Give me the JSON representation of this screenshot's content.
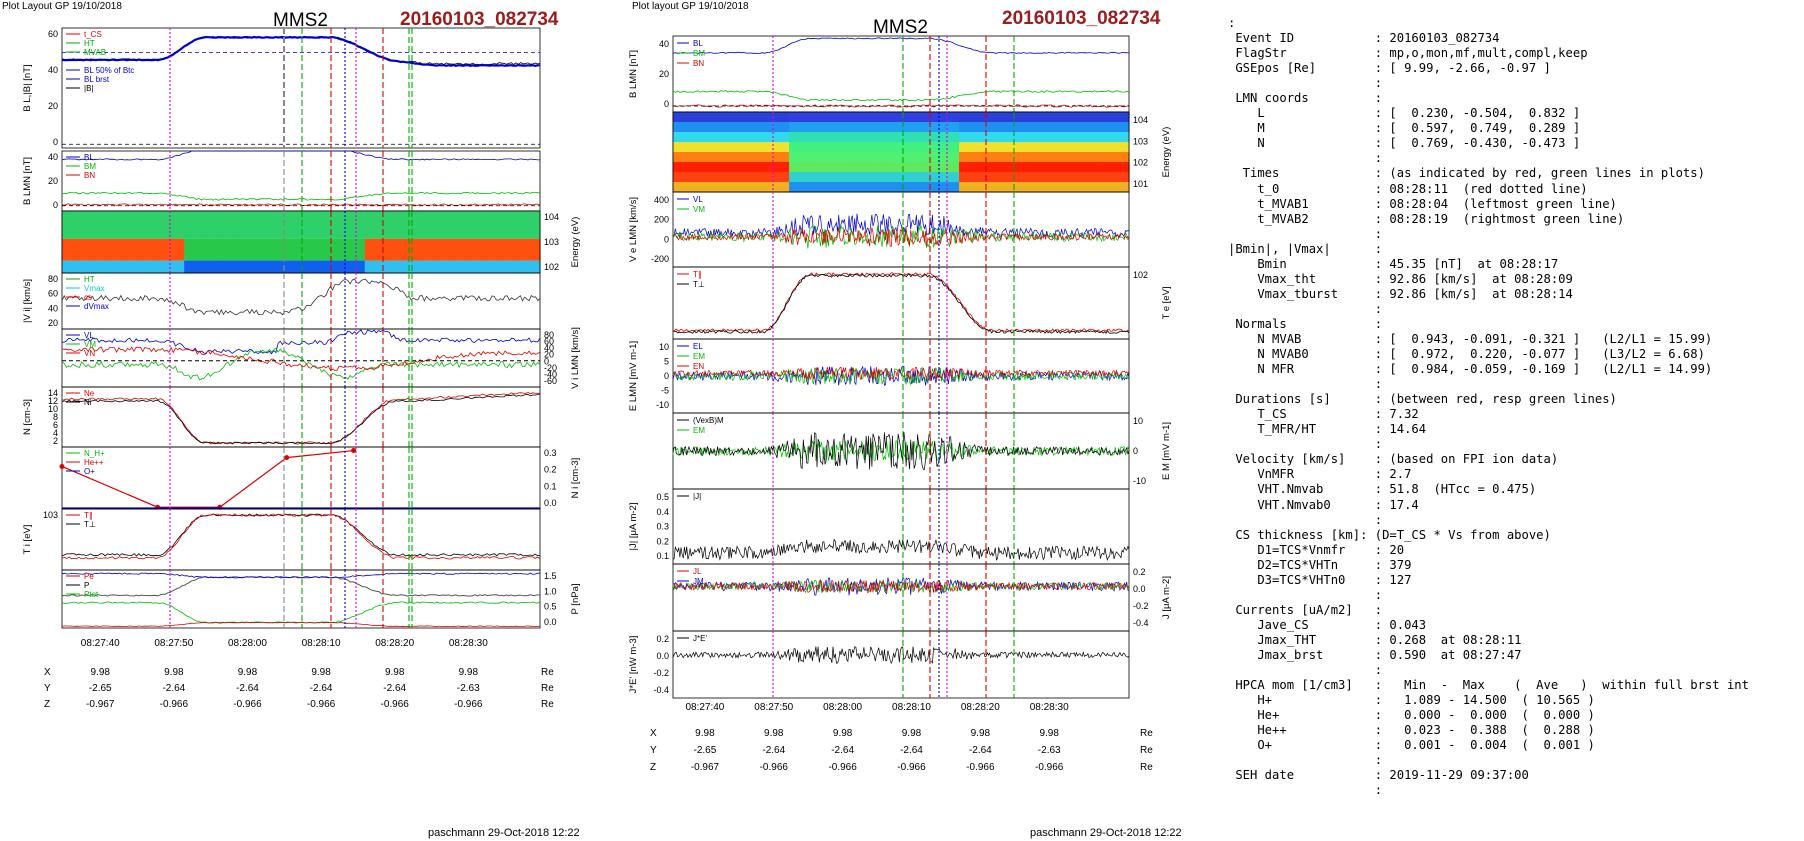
{
  "left": {
    "header": "Plot Layout GP 19/10/2018",
    "title": "MMS2",
    "event": "20160103_082734",
    "footer": "paschmann 29-Oct-2018 12:22",
    "time_labels": [
      "08:27:40",
      "08:27:50",
      "08:28:00",
      "08:28:10",
      "08:28:20",
      "08:28:30"
    ],
    "ephem": [
      {
        "label": "X",
        "values": [
          "9.98",
          "9.98",
          "9.98",
          "9.98",
          "9.98",
          "9.98"
        ],
        "unit": "Re"
      },
      {
        "label": "Y",
        "values": [
          "-2.65",
          "-2.64",
          "-2.64",
          "-2.64",
          "-2.64",
          "-2.63"
        ],
        "unit": "Re"
      },
      {
        "label": "Z",
        "values": [
          "-0.967",
          "-0.966",
          "-0.966",
          "-0.966",
          "-0.966",
          "-0.966"
        ],
        "unit": "Re"
      }
    ],
    "panels": [
      {
        "id": "p1",
        "ylabel": "B_L,|B| [nT]",
        "ticks": [
          "60",
          "40",
          "20",
          "0"
        ],
        "legend": [
          "t_CS",
          "HT",
          "MVAB",
          "",
          "BL 50% of Btc",
          "BL brst",
          "|B|"
        ],
        "legend_colors": [
          "#d00",
          "#0a0",
          "#0a0",
          "#888",
          "#00c",
          "#00c",
          "#000"
        ]
      },
      {
        "id": "p2",
        "ylabel": "B_LMN [nT]",
        "ticks": [
          "40",
          "20",
          "0"
        ],
        "legend": [
          "BL",
          "BM",
          "BN"
        ],
        "legend_colors": [
          "#00c",
          "#0b0",
          "#d00"
        ]
      },
      {
        "id": "p3",
        "ylabel": "Energy (eV)",
        "ticks": [
          "10^4",
          "10^3",
          "10^2"
        ]
      },
      {
        "id": "p4",
        "ylabel": "|V_i| [km/s]",
        "ticks": [
          "80",
          "60",
          "40",
          "20"
        ],
        "legend": [
          "HT",
          "Vmax",
          "cs",
          "dVmax"
        ],
        "legend_colors": [
          "#0a0",
          "#0cc",
          "#d00",
          "#00c"
        ]
      },
      {
        "id": "p5",
        "ylabel": "V_i LMN [km/s]",
        "ticks": [
          "80",
          "60",
          "40",
          "20",
          "0",
          "-20",
          "-40",
          "-60"
        ],
        "legend": [
          "VL",
          "VM",
          "VN"
        ],
        "legend_colors": [
          "#00c",
          "#0b0",
          "#d00"
        ]
      },
      {
        "id": "p6",
        "ylabel": "N [cm^-3]",
        "ticks": [
          "14",
          "12",
          "10",
          "8",
          "6",
          "4",
          "2"
        ],
        "legend": [
          "Ne",
          "Ni"
        ],
        "legend_colors": [
          "#d00",
          "#000"
        ]
      },
      {
        "id": "p7",
        "ylabel": "N_i [cm^-3]",
        "ticks": [
          "0.3",
          "0.2",
          "0.1",
          "0.0"
        ],
        "legend": [
          "N_H+",
          "He++",
          "O+"
        ],
        "legend_colors": [
          "#0b0",
          "#d00",
          "#00c"
        ]
      },
      {
        "id": "p8",
        "ylabel": "T_i [eV]",
        "ticks": [
          "10^3"
        ],
        "legend": [
          "T∥",
          "T⊥"
        ],
        "legend_colors": [
          "#d00",
          "#000"
        ]
      },
      {
        "id": "p9",
        "ylabel": "P [nPa]",
        "ticks": [
          "1.5",
          "1.0",
          "0.5",
          "0.0"
        ],
        "legend": [
          "Pe",
          "P",
          "Ptot"
        ],
        "legend_colors": [
          "#d00",
          "#000",
          "#0b0"
        ]
      }
    ]
  },
  "center": {
    "header": "Plot layout GP 19/10/2018",
    "title": "MMS2",
    "event": "20160103_082734",
    "footer": "paschmann 29-Oct-2018 12:22",
    "time_labels": [
      "08:27:40",
      "08:27:50",
      "08:28:00",
      "08:28:10",
      "08:28:20",
      "08:28:30"
    ],
    "ephem": [
      {
        "label": "X",
        "values": [
          "9.98",
          "9.98",
          "9.98",
          "9.98",
          "9.98",
          "9.98"
        ],
        "unit": "Re"
      },
      {
        "label": "Y",
        "values": [
          "-2.65",
          "-2.64",
          "-2.64",
          "-2.64",
          "-2.64",
          "-2.63"
        ],
        "unit": "Re"
      },
      {
        "label": "Z",
        "values": [
          "-0.967",
          "-0.966",
          "-0.966",
          "-0.966",
          "-0.966",
          "-0.966"
        ],
        "unit": "Re"
      }
    ],
    "panels": [
      {
        "id": "c1",
        "ylabel": "B_LMN [nT]",
        "ticks": [
          "40",
          "20",
          "0"
        ],
        "legend": [
          "BL",
          "BM",
          "BN"
        ]
      },
      {
        "id": "c2",
        "ylabel": "Energy (eV)",
        "ticks": [
          "10^4",
          "10^3",
          "10^2",
          "10^1"
        ]
      },
      {
        "id": "c3",
        "ylabel": "V_e LMN [km/s]",
        "ticks": [
          "400",
          "200",
          "0",
          "-200"
        ],
        "legend": [
          "VL",
          "VM"
        ]
      },
      {
        "id": "c4",
        "ylabel": "T_e [eV]",
        "ticks": [
          "10^2"
        ],
        "legend": [
          "T∥",
          "T⊥"
        ]
      },
      {
        "id": "c5",
        "ylabel": "E_LMN [mV m^-1]",
        "ticks": [
          "10",
          "5",
          "0",
          "-5",
          "-10"
        ],
        "legend": [
          "EL",
          "EM",
          "EN"
        ]
      },
      {
        "id": "c6",
        "ylabel": "E_M [mV m^-1]",
        "ticks": [
          "10",
          "0",
          "-10"
        ],
        "legend": [
          "(VexB)M",
          "EM"
        ]
      },
      {
        "id": "c7",
        "ylabel": "|J| [μA m^-2]",
        "ticks": [
          "0.5",
          "0.4",
          "0.3",
          "0.2",
          "0.1"
        ],
        "legend": [
          "|J|"
        ]
      },
      {
        "id": "c8",
        "ylabel": "J [μA m^-2]",
        "ticks": [
          "0.2",
          "0.0",
          "-0.2",
          "-0.4"
        ],
        "legend": [
          "JL",
          "JM"
        ]
      },
      {
        "id": "c9",
        "ylabel": "J*E' [nW m^-3]",
        "ticks": [
          "0.2",
          "0.0",
          "-0.2",
          "-0.4"
        ],
        "legend": [
          "J*E'"
        ]
      }
    ]
  },
  "info_lines": [
    ":",
    " Event ID           : 20160103_082734",
    " FlagStr            : mp,o,mon,mf,mult,compl,keep",
    " GSEpos [Re]        : [ 9.99, -2.66, -0.97 ]",
    "                    :",
    " LMN coords         :",
    "    L               : [  0.230, -0.504,  0.832 ]",
    "    M               : [  0.597,  0.749,  0.289 ]",
    "    N               : [  0.769, -0.430, -0.473 ]",
    "                    :",
    "  Times             : (as indicated by red, green lines in plots)",
    "    t_0             : 08:28:11  (red dotted line)",
    "    t_MVAB1         : 08:28:04  (leftmost green line)",
    "    t_MVAB2         : 08:28:19  (rightmost green line)",
    "                    :",
    "|Bmin|, |Vmax|      :",
    "    Bmin            : 45.35 [nT]  at 08:28:17",
    "    Vmax_tht        : 92.86 [km/s]  at 08:28:09",
    "    Vmax_tburst     : 92.86 [km/s]  at 08:28:14",
    "                    :",
    " Normals            :",
    "    N MVAB          : [  0.943, -0.091, -0.321 ]   (L2/L1 = 15.99)",
    "    N MVAB0         : [  0.972,  0.220, -0.077 ]   (L3/L2 = 6.68)",
    "    N MFR           : [  0.984, -0.059, -0.169 ]   (L2/L1 = 14.99)",
    "                    :",
    " Durations [s]      : (between red, resp green lines)",
    "    T_CS            : 7.32",
    "    T_MFR/HT        : 14.64",
    "                    :",
    " Velocity [km/s]    : (based on FPI ion data)",
    "    VnMFR           : 2.7",
    "    VHT.Nmvab       : 51.8  (HTcc = 0.475)",
    "    VHT.Nmvab0      : 17.4",
    "                    :",
    " CS thickness [km]: (D=T_CS * Vs from above)",
    "    D1=TCS*Vnmfr    : 20",
    "    D2=TCS*VHTn     : 379",
    "    D3=TCS*VHTn0    : 127",
    "                    :",
    " Currents [uA/m2]   :",
    "    Jave_CS         : 0.043",
    "    Jmax_THT        : 0.268  at 08:28:11",
    "    Jmax_brst       : 0.590  at 08:27:47",
    "                    :",
    " HPCA mom [1/cm3]   :   Min  -  Max    (  Ave   )  within full brst int",
    "    H+              :   1.089 - 14.500  ( 10.565 )",
    "    He+             :   0.000 -  0.000  (  0.000 )",
    "    He++            :   0.023 -  0.388  (  0.288 )",
    "    O+              :   0.001 -  0.004  (  0.001 )",
    "                    :",
    " SEH date           : 2019-11-29 09:37:00",
    "                    :"
  ],
  "chart_data": [
    {
      "type": "line",
      "title": "MMS2",
      "subtitle": "20160103_082734",
      "x": [
        "08:27:40",
        "08:27:50",
        "08:28:00",
        "08:28:10",
        "08:28:20",
        "08:28:30"
      ],
      "panels": 9
    },
    {
      "type": "line",
      "title": "MMS2",
      "subtitle": "20160103_082734",
      "x": [
        "08:27:40",
        "08:27:50",
        "08:28:00",
        "08:28:10",
        "08:28:20",
        "08:28:30"
      ],
      "panels": 9
    }
  ],
  "colors": {
    "red": "#d00",
    "green": "#0a0",
    "blue": "#00c",
    "magenta": "#d0d",
    "title_red": "#9b1c1c"
  }
}
